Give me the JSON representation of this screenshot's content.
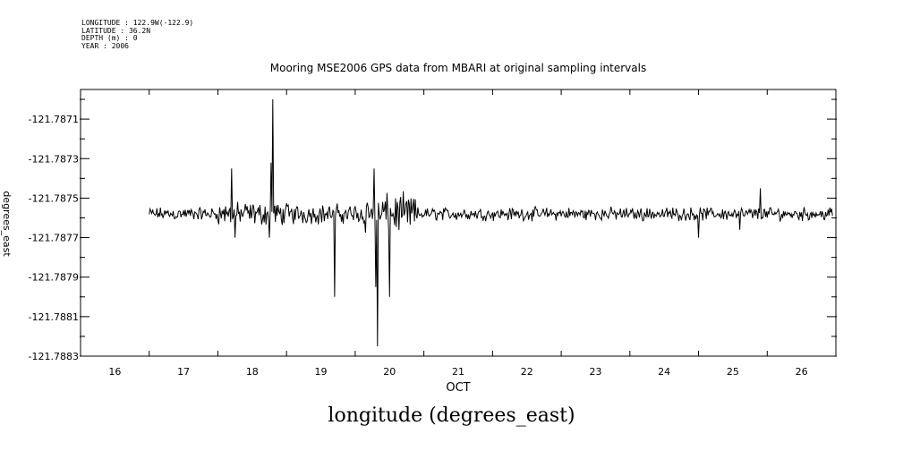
{
  "header": {
    "longitude": "LONGITUDE : 122.9W(-122.9)",
    "latitude": "LATITUDE : 36.2N",
    "depth": "DEPTH (m) : 0",
    "year": "YEAR : 2006"
  },
  "caption": "longitude (degrees_east)",
  "chart_data": {
    "type": "line",
    "title": "Mooring MSE2006 GPS data from MBARI at original sampling intervals",
    "xlabel": "OCT",
    "ylabel": "degrees_east",
    "xlim": [
      15.5,
      26.5
    ],
    "ylim": [
      -121.7883,
      -121.78695
    ],
    "x_ticks": [
      16,
      17,
      18,
      19,
      20,
      21,
      22,
      23,
      24,
      25,
      26
    ],
    "x_tick_labels": [
      "16",
      "17",
      "18",
      "19",
      "20",
      "21",
      "22",
      "23",
      "24",
      "25",
      "26"
    ],
    "y_ticks": [
      -121.7871,
      -121.7873,
      -121.7875,
      -121.7877,
      -121.7879,
      -121.7881,
      -121.7883
    ],
    "y_tick_labels": [
      "-121.7871",
      "-121.7873",
      "-121.7875",
      "-121.7877",
      "-121.7879",
      "-121.7881",
      "-121.7883"
    ],
    "x_range": [
      16.5,
      26.45
    ],
    "baseline": -121.78758,
    "noise_amplitude": [
      {
        "from": 16.5,
        "to": 17.5,
        "amp": 4e-05
      },
      {
        "from": 17.5,
        "to": 18.6,
        "amp": 7e-05
      },
      {
        "from": 18.6,
        "to": 19.6,
        "amp": 6e-05
      },
      {
        "from": 19.6,
        "to": 20.4,
        "amp": 0.00012
      },
      {
        "from": 20.4,
        "to": 26.45,
        "amp": 4e-05
      }
    ],
    "spikes": [
      {
        "x": 17.7,
        "y": -121.78735
      },
      {
        "x": 17.75,
        "y": -121.7877
      },
      {
        "x": 18.3,
        "y": -121.787
      },
      {
        "x": 18.28,
        "y": -121.78732
      },
      {
        "x": 18.25,
        "y": -121.7877
      },
      {
        "x": 19.2,
        "y": -121.788
      },
      {
        "x": 19.82,
        "y": -121.78825
      },
      {
        "x": 19.78,
        "y": -121.78735
      },
      {
        "x": 19.8,
        "y": -121.78795
      },
      {
        "x": 20.0,
        "y": -121.788
      },
      {
        "x": 24.5,
        "y": -121.7877
      },
      {
        "x": 25.4,
        "y": -121.78745
      },
      {
        "x": 25.1,
        "y": -121.78766
      }
    ],
    "grid": false
  }
}
